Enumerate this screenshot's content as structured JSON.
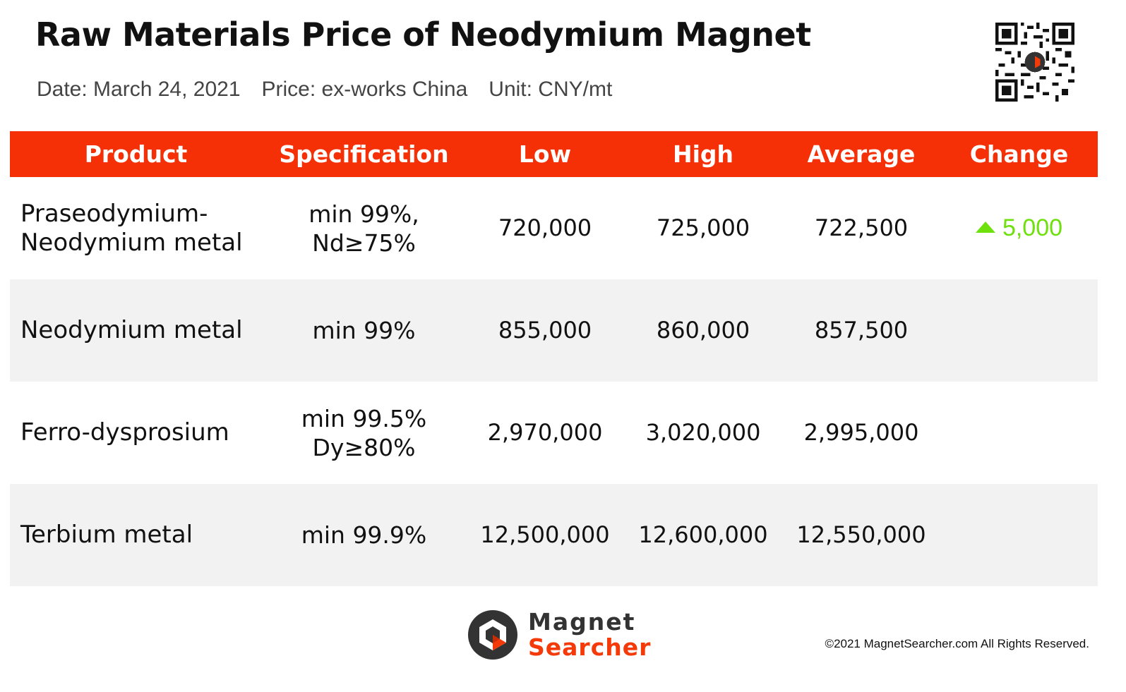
{
  "header": {
    "title": "Raw Materials Price of Neodymium Magnet",
    "date": "Date: March 24, 2021",
    "price": "Price: ex-works China",
    "unit": "Unit: CNY/mt"
  },
  "table": {
    "columns": [
      "Product",
      "Specification",
      "Low",
      "High",
      "Average",
      "Change"
    ],
    "rows": [
      {
        "product_line1": "Praseodymium-",
        "product_line2": "Neodymium metal",
        "spec_line1": "min 99%,",
        "spec_line2": "Nd≥75%",
        "low": "720,000",
        "high": "725,000",
        "average": "722,500",
        "change": "5,000",
        "change_direction": "up"
      },
      {
        "product_line1": "Neodymium metal",
        "product_line2": "",
        "spec_line1": "min 99%",
        "spec_line2": "",
        "low": "855,000",
        "high": "860,000",
        "average": "857,500",
        "change": ""
      },
      {
        "product_line1": "Ferro-dysprosium",
        "product_line2": "",
        "spec_line1": "min 99.5%",
        "spec_line2": "Dy≥80%",
        "low": "2,970,000",
        "high": "3,020,000",
        "average": "2,995,000",
        "change": ""
      },
      {
        "product_line1": "Terbium metal",
        "product_line2": "",
        "spec_line1": "min 99.9%",
        "spec_line2": "",
        "low": "12,500,000",
        "high": "12,600,000",
        "average": "12,550,000",
        "change": ""
      }
    ]
  },
  "footer": {
    "logo_line1": "Magnet",
    "logo_line2": "Searcher",
    "copyright": "©2021 MagnetSearcher.com All Rights Reserved."
  },
  "colors": {
    "header_bg": "#f52f06",
    "change_up": "#6ee00c",
    "alt_row": "#f2f2f2",
    "brand_orange": "#f53a0a"
  },
  "icons": [
    "qr-code-icon",
    "magnet-searcher-logo-icon",
    "up-triangle-icon"
  ]
}
